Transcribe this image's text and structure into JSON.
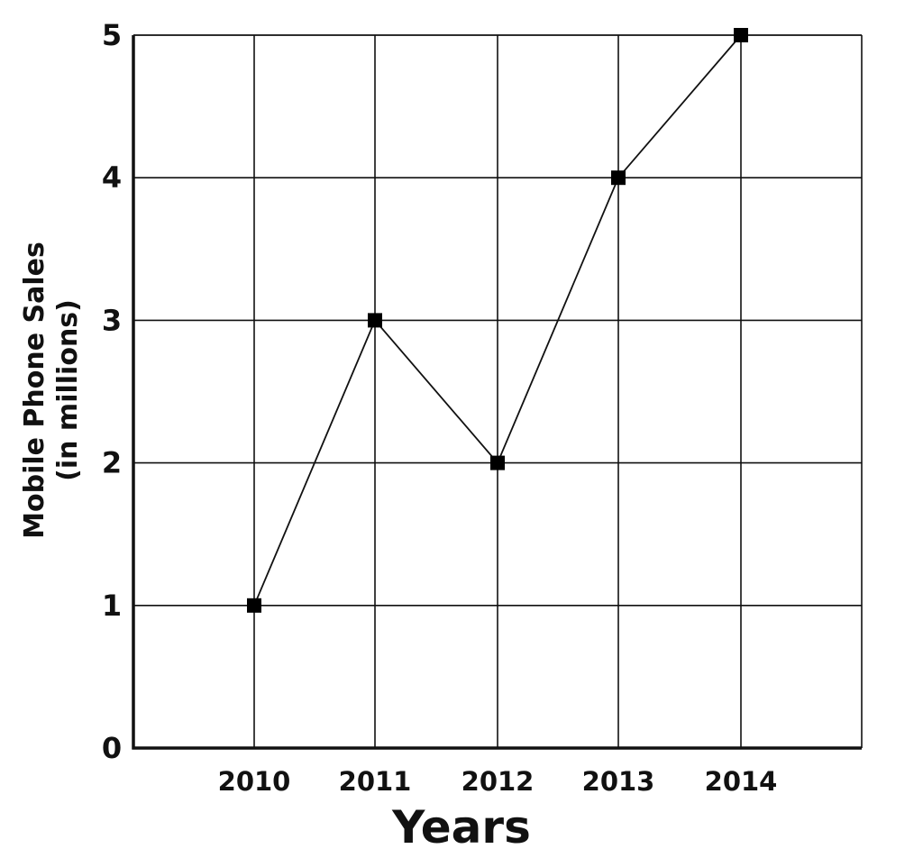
{
  "chart_data": {
    "type": "line",
    "title": "",
    "xlabel": "Years",
    "ylabel_lines": [
      "Mobile Phone Sales",
      "(in millions)"
    ],
    "categories": [
      "2010",
      "2011",
      "2012",
      "2013",
      "2014"
    ],
    "series": [
      {
        "values": [
          1,
          3,
          2,
          4,
          5
        ]
      }
    ],
    "ylim": [
      0,
      5
    ],
    "yticks": [
      "0",
      "1",
      "2",
      "3",
      "4",
      "5"
    ],
    "marker": "square",
    "grid": true,
    "legend": "none",
    "colors": {
      "line": "#111111",
      "marker": "#000000",
      "grid": "#111111"
    }
  }
}
